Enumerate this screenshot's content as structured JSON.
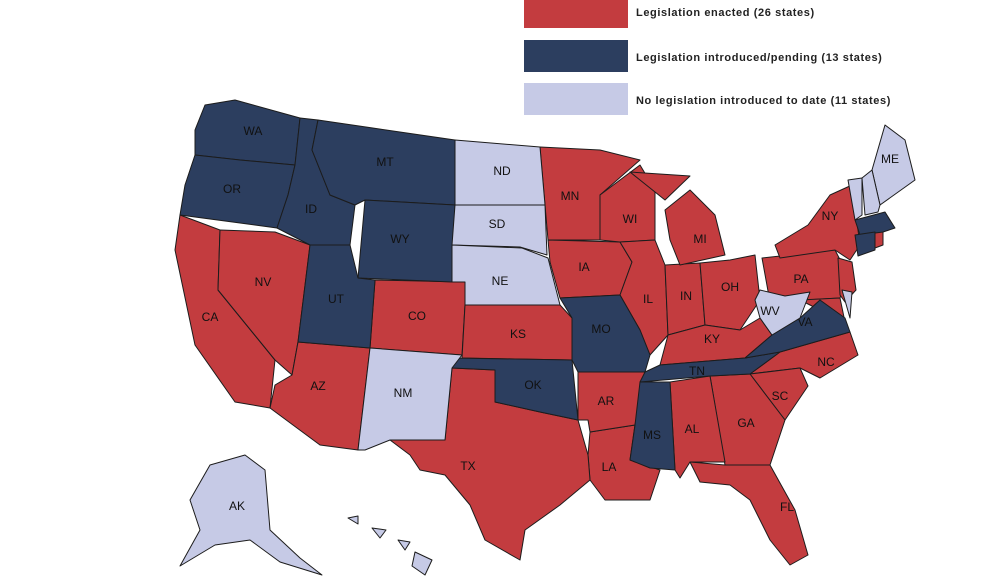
{
  "legend": [
    {
      "label": "Legislation enacted (26 states)",
      "color": "#c33c3f",
      "states": [
        "CA",
        "NV",
        "AZ",
        "CO",
        "KS",
        "MN",
        "IA",
        "WI",
        "IL",
        "IN",
        "MI",
        "OH",
        "KY",
        "PA",
        "NY",
        "NC",
        "SC",
        "GA",
        "AL",
        "FL",
        "LA",
        "AR",
        "TX"
      ]
    },
    {
      "label": "Legislation introduced/pending (13 states)",
      "color": "#2c3e5f",
      "states": [
        "WA",
        "OR",
        "ID",
        "MT",
        "WY",
        "UT",
        "OK",
        "MO",
        "TN",
        "MS",
        "VA"
      ]
    },
    {
      "label": "No legislation introduced to date (11 states)",
      "color": "#c6cae6",
      "states": [
        "ND",
        "SD",
        "NE",
        "NM",
        "WV",
        "AK",
        "ME"
      ]
    }
  ]
}
